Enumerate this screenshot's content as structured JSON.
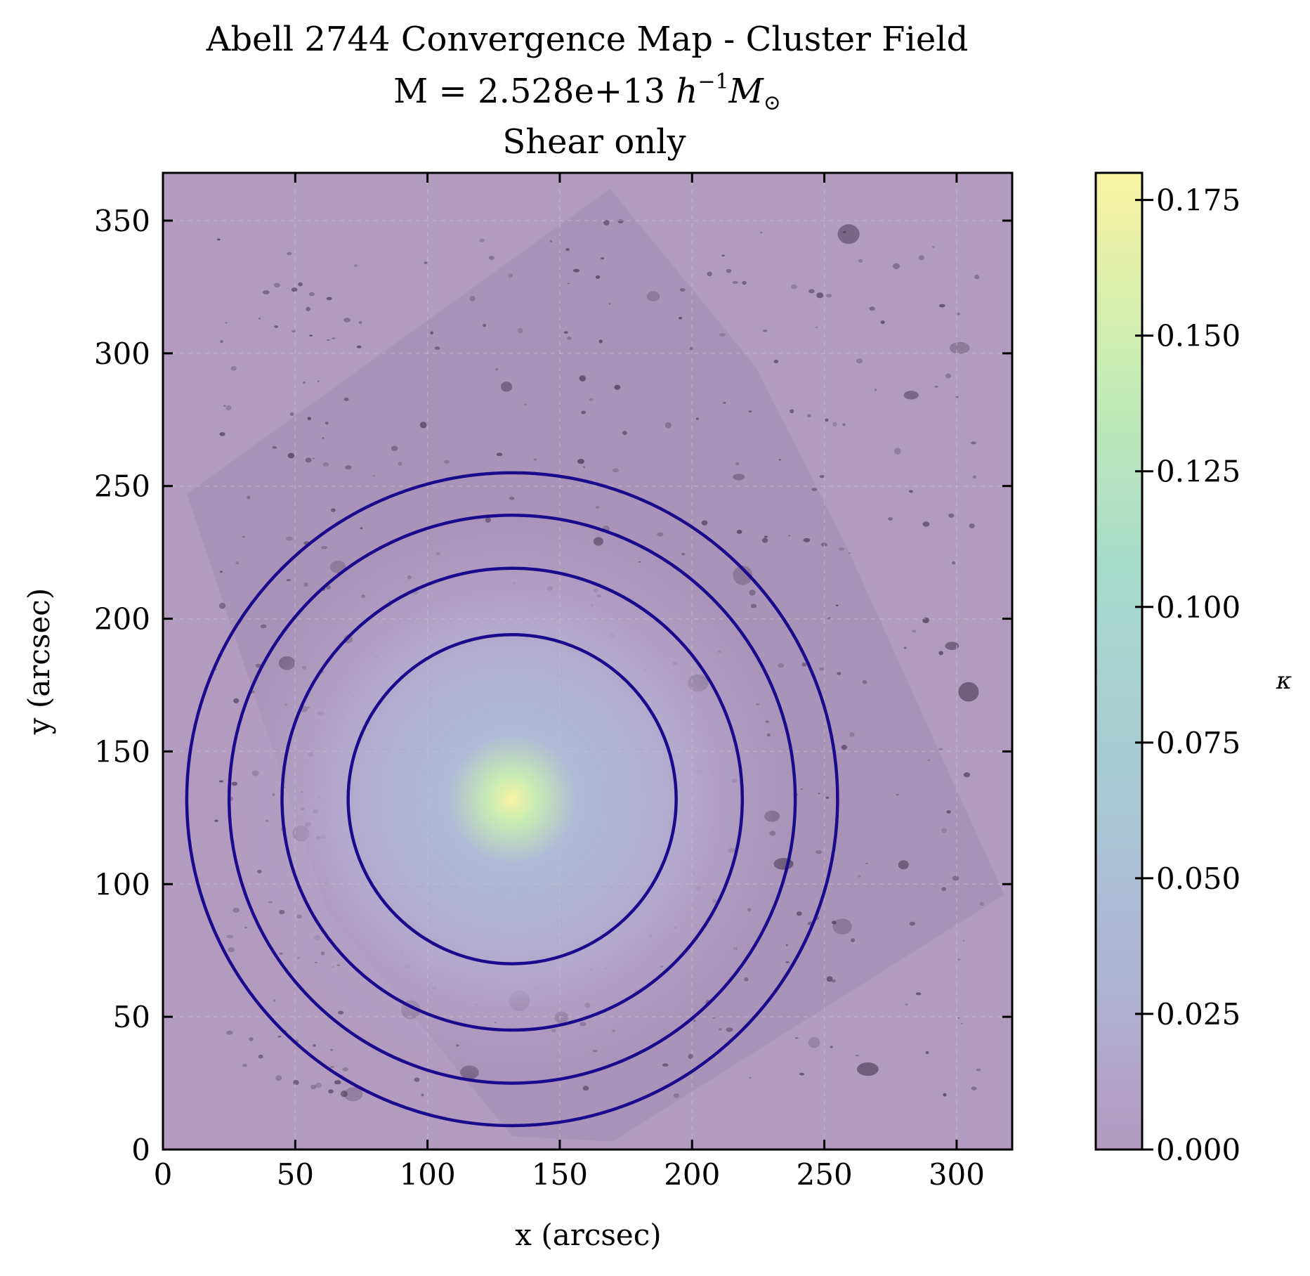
{
  "chart_data": {
    "type": "heatmap",
    "title": "Abell 2744 Convergence Map - Cluster Field",
    "subtitle_prefix": "M = 2.528e+13 ",
    "subtitle_units_h": "h",
    "subtitle_units_exp": "−1",
    "subtitle_units_m": "M",
    "subtitle_units_sun": "⊙",
    "subtitle2": "Shear only",
    "xlabel": "x (arcsec)",
    "ylabel": "y (arcsec)",
    "xlim": [
      0,
      321
    ],
    "ylim": [
      0,
      368
    ],
    "xticks": [
      0,
      50,
      100,
      150,
      200,
      250,
      300
    ],
    "yticks": [
      0,
      50,
      100,
      150,
      200,
      250,
      300,
      350
    ],
    "grid": true,
    "peak": {
      "x": 132,
      "y": 132,
      "kappa": 0.18
    },
    "circles": {
      "center": [
        132,
        132
      ],
      "radii_arcsec": [
        62,
        87,
        107,
        123
      ],
      "color": "#1a0a8c"
    },
    "colorbar": {
      "label": "κ",
      "min": 0.0,
      "max": 0.18,
      "ticks": [
        0.0,
        0.025,
        0.05,
        0.075,
        0.1,
        0.125,
        0.15,
        0.175
      ],
      "tick_labels": [
        "0.000",
        "0.025",
        "0.050",
        "0.075",
        "0.100",
        "0.125",
        "0.150",
        "0.175"
      ],
      "colors": [
        "#b39bc0",
        "#aeb6d4",
        "#a8cbd3",
        "#a7dccb",
        "#c8ecb3",
        "#f9f3a2"
      ]
    },
    "background_color": "#b39bc0"
  }
}
